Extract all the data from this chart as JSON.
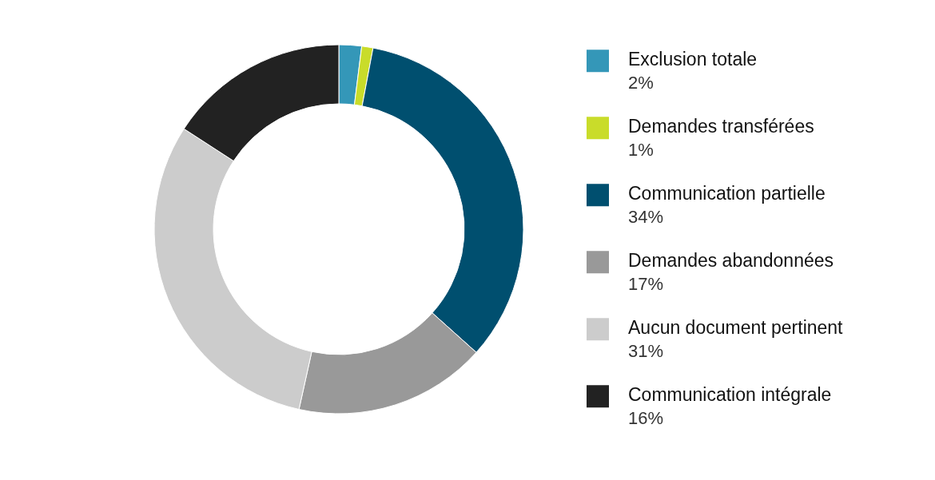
{
  "chart_data": {
    "type": "donut",
    "categories": [
      "Exclusion totale",
      "Demandes transférées",
      "Communication partielle",
      "Demandes abandonnées",
      "Aucun document pertinent",
      "Communication intégrale"
    ],
    "values": [
      2,
      1,
      34,
      17,
      31,
      16
    ],
    "value_labels": [
      "2%",
      "1%",
      "34%",
      "17%",
      "31%",
      "16%"
    ],
    "colors": [
      "#3497b8",
      "#c9dc2a",
      "#004f6f",
      "#999999",
      "#cccccc",
      "#222222"
    ],
    "legend": "right"
  }
}
